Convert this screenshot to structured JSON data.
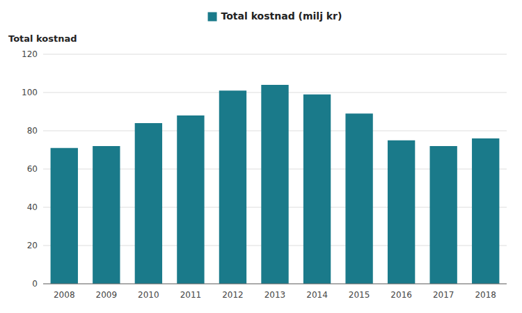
{
  "chart_data": {
    "type": "bar",
    "y_label": "Total kostnad",
    "categories": [
      "2008",
      "2009",
      "2010",
      "2011",
      "2012",
      "2013",
      "2014",
      "2015",
      "2016",
      "2017",
      "2018"
    ],
    "series": [
      {
        "name": "Total kostnad (milj kr)",
        "color": "#1a7a8a",
        "values": [
          71,
          72,
          84,
          88,
          101,
          104,
          99,
          89,
          75,
          72,
          76
        ]
      }
    ],
    "ylim": [
      0,
      120
    ],
    "yticks": [
      0,
      20,
      40,
      60,
      80,
      100,
      120
    ],
    "grid": true,
    "legend": "top"
  }
}
